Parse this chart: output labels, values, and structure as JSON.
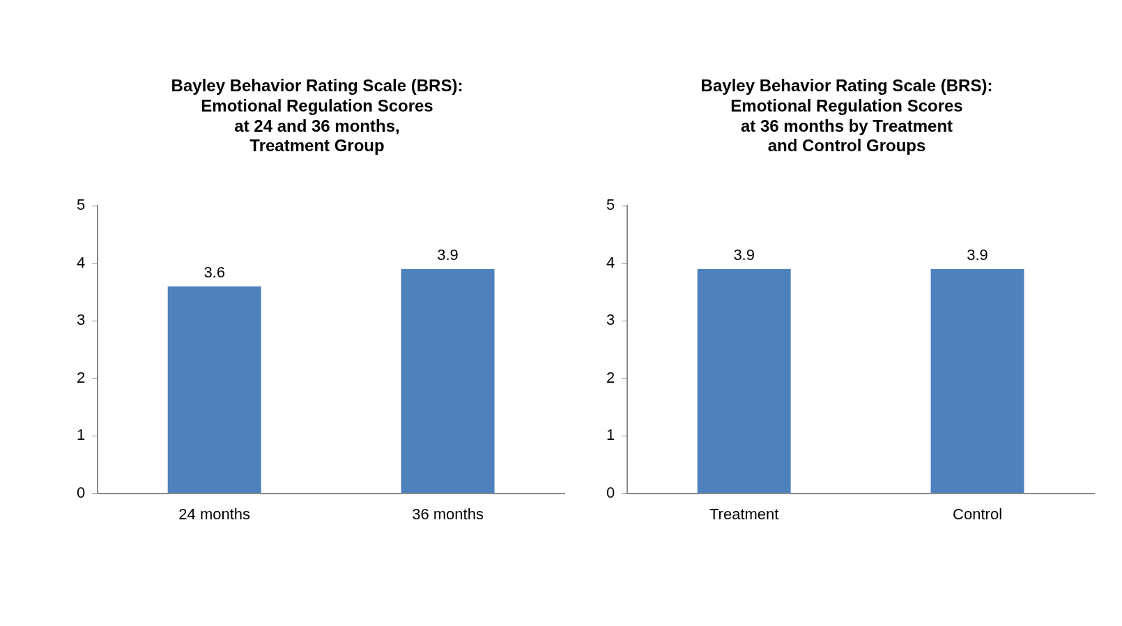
{
  "chart_data": [
    {
      "type": "bar",
      "title": "Bayley Behavior Rating Scale (BRS):\nEmotional Regulation Scores\nat 24 and 36 months,\nTreatment Group",
      "categories": [
        "24 months",
        "36 months"
      ],
      "values": [
        3.6,
        3.9
      ],
      "color": "#4f81bd",
      "ylim": [
        0,
        5
      ],
      "yticks": [
        0,
        1,
        2,
        3,
        4,
        5
      ],
      "grid": false,
      "legend": false,
      "data_labels": true
    },
    {
      "type": "bar",
      "title": "Bayley Behavior Rating Scale (BRS):\nEmotional Regulation Scores\nat 36 months by Treatment\nand Control Groups",
      "categories": [
        "Treatment",
        "Control"
      ],
      "values": [
        3.9,
        3.9
      ],
      "color": "#4f81bd",
      "ylim": [
        0,
        5
      ],
      "yticks": [
        0,
        1,
        2,
        3,
        4,
        5
      ],
      "grid": false,
      "legend": false,
      "data_labels": true
    }
  ]
}
